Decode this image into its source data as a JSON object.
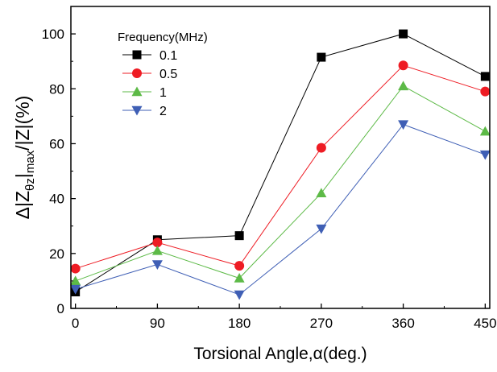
{
  "chart_data": {
    "type": "line",
    "title": "",
    "xlabel": "Torsional Angle,α(deg.)",
    "ylabel": {
      "prefix": "Δ|Z",
      "sub": "θz",
      "mid": "|",
      "sub2": "max",
      "suffix": "/|Z|(%)"
    },
    "x": [
      0,
      90,
      180,
      270,
      360,
      450
    ],
    "xlim": [
      -5,
      455
    ],
    "ylim": [
      0,
      110
    ],
    "xticks": [
      0,
      90,
      180,
      270,
      360,
      450
    ],
    "yticks": [
      0,
      20,
      40,
      60,
      80,
      100
    ],
    "grid": false,
    "legend": {
      "title": "Frequency(MHz)",
      "placement": "top-left"
    },
    "series": [
      {
        "name": "0.1",
        "color": "#000000",
        "marker": "square",
        "values": [
          6,
          25,
          26.5,
          91.5,
          100,
          84.5
        ]
      },
      {
        "name": "0.5",
        "color": "#ee1c24",
        "marker": "circle",
        "values": [
          14.5,
          24,
          15.5,
          58.5,
          88.5,
          79
        ]
      },
      {
        "name": "1",
        "color": "#5dba47",
        "marker": "triangle-up",
        "values": [
          10,
          21,
          11,
          42,
          81,
          64.5
        ]
      },
      {
        "name": "2",
        "color": "#3f5fb5",
        "marker": "triangle-down",
        "values": [
          7,
          16,
          5,
          29,
          67,
          56
        ]
      }
    ]
  }
}
